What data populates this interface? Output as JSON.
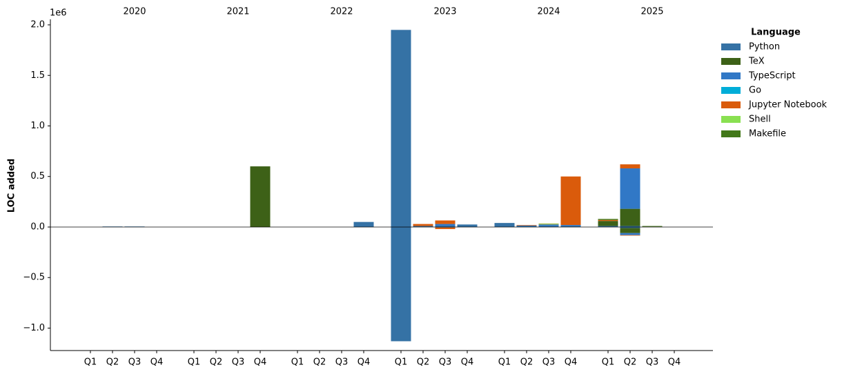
{
  "chart_data": {
    "type": "bar",
    "stacked": true,
    "y_label": "LOC added",
    "y_offset_label": "1e6",
    "years": [
      "2020",
      "2021",
      "2022",
      "2023",
      "2024",
      "2025"
    ],
    "categories": [
      "Q1",
      "Q2",
      "Q3",
      "Q4",
      "Q1",
      "Q2",
      "Q3",
      "Q4",
      "Q1",
      "Q2",
      "Q3",
      "Q4",
      "Q1",
      "Q2",
      "Q3",
      "Q4",
      "Q1",
      "Q2",
      "Q3",
      "Q4",
      "Q1",
      "Q2",
      "Q3",
      "Q4"
    ],
    "legend_title": "Language",
    "legend": "upper right outside",
    "ylim": [
      -1.222,
      2.041
    ],
    "yticks": [
      {
        "value": -1,
        "label": "−1.0"
      },
      {
        "value": -0.5,
        "label": "−0.5"
      },
      {
        "value": 0,
        "label": "0.0"
      },
      {
        "value": 0.5,
        "label": "0.5"
      },
      {
        "value": 1,
        "label": "1.0"
      },
      {
        "value": 1.5,
        "label": "1.5"
      },
      {
        "value": 2,
        "label": "2.0"
      }
    ],
    "series": [
      {
        "name": "Python",
        "color": "#3572a5",
        "values": [
          0,
          0.005,
          0.005,
          0,
          0,
          0,
          0,
          0,
          0,
          0,
          0,
          0.05,
          1.95,
          0.01,
          0.01,
          0.025,
          0.04,
          0.01,
          0.01,
          0.01,
          0.01,
          0.01,
          0,
          0
        ],
        "neg_values": [
          0,
          0,
          0,
          0,
          0,
          0,
          0,
          0,
          0,
          0,
          0,
          0,
          -1.13,
          0,
          -0.005,
          0,
          0,
          0,
          0,
          0,
          0,
          -0.01,
          0,
          0
        ]
      },
      {
        "name": "TeX",
        "color": "#3d6117",
        "values": [
          0,
          0,
          0,
          0,
          0,
          0,
          0,
          0.6,
          0,
          0,
          0,
          0,
          0,
          0,
          0,
          0,
          0,
          0,
          0,
          0,
          0.05,
          0.17,
          0.005,
          0
        ],
        "neg_values": [
          0,
          0,
          0,
          0,
          0,
          0,
          0,
          0,
          0,
          0,
          0,
          0,
          0,
          0,
          0,
          0,
          0,
          0,
          0,
          0,
          0,
          -0.05,
          0,
          0
        ]
      },
      {
        "name": "TypeScript",
        "color": "#3178c6",
        "values": [
          0,
          0,
          0,
          0,
          0,
          0,
          0,
          0,
          0,
          0,
          0,
          0,
          0,
          0,
          0.02,
          0,
          0,
          0.005,
          0.01,
          0.01,
          0,
          0.4,
          0,
          0
        ],
        "neg_values": [
          0,
          0,
          0,
          0,
          0,
          0,
          0,
          0,
          0,
          0,
          0,
          0,
          0,
          0,
          0,
          0,
          0,
          0,
          0,
          0,
          0,
          -0.02,
          0,
          0
        ]
      },
      {
        "name": "Go",
        "color": "#00add8",
        "values": [
          0,
          0,
          0,
          0,
          0,
          0,
          0,
          0,
          0,
          0,
          0,
          0,
          0,
          0,
          0,
          0,
          0,
          0,
          0.005,
          0,
          0,
          0,
          0,
          0
        ],
        "neg_values": [
          0,
          0,
          0,
          0,
          0,
          0,
          0,
          0,
          0,
          0,
          0,
          0,
          0,
          0,
          0,
          0,
          0,
          0,
          0,
          0,
          0,
          0,
          0,
          0
        ]
      },
      {
        "name": "Jupyter Notebook",
        "color": "#da5b0b",
        "values": [
          0,
          0,
          0,
          0,
          0,
          0,
          0,
          0,
          0,
          0,
          0,
          0,
          0,
          0.02,
          0.035,
          0,
          0,
          0.005,
          0.005,
          0.48,
          0.01,
          0.04,
          0,
          0
        ],
        "neg_values": [
          0,
          0,
          0,
          0,
          0,
          0,
          0,
          0,
          0,
          0,
          0,
          0,
          0,
          0,
          -0.015,
          0,
          0,
          0,
          0,
          0,
          0,
          -0.005,
          0,
          0
        ]
      },
      {
        "name": "Shell",
        "color": "#89e051",
        "values": [
          0,
          0,
          0,
          0,
          0,
          0,
          0,
          0,
          0,
          0,
          0,
          0,
          0,
          0,
          0,
          0,
          0,
          0,
          0.005,
          0,
          0,
          0,
          0,
          0
        ],
        "neg_values": [
          0,
          0,
          0,
          0,
          0,
          0,
          0,
          0,
          0,
          0,
          0,
          0,
          0,
          0,
          0,
          0,
          0,
          0,
          0,
          0,
          0,
          0,
          0,
          0
        ]
      },
      {
        "name": "Makefile",
        "color": "#427819",
        "values": [
          0,
          0,
          0,
          0,
          0,
          0,
          0,
          0,
          0,
          0,
          0,
          0,
          0,
          0,
          0,
          0,
          0,
          0,
          0,
          0,
          0.01,
          0,
          0.005,
          0
        ],
        "neg_values": [
          0,
          0,
          0,
          0,
          0,
          0,
          0,
          0,
          0,
          0,
          0,
          0,
          0,
          0,
          0,
          0,
          0,
          0,
          0,
          0,
          0,
          0,
          0,
          0
        ]
      }
    ]
  }
}
